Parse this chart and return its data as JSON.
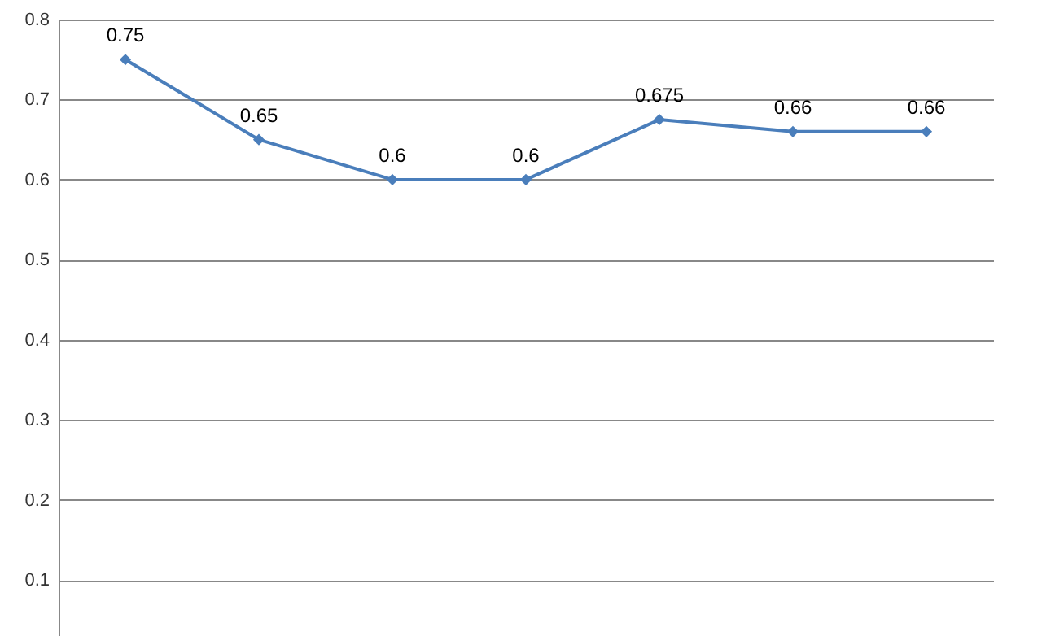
{
  "chart_data": {
    "type": "line",
    "categories": [
      null,
      null,
      null,
      null,
      null,
      null,
      null
    ],
    "series": [
      {
        "color": "#4a7ebb",
        "values": [
          0.75,
          0.65,
          0.6,
          0.6,
          0.675,
          0.66,
          0.66
        ]
      }
    ],
    "ylim": [
      0.03,
      0.8
    ],
    "yticks": [
      0.1,
      0.2,
      0.3,
      0.4,
      0.5,
      0.6,
      0.7,
      0.8
    ],
    "grid": "y",
    "marker": "diamond",
    "line_style": "solid",
    "data_labels": true,
    "tick_labels": "y"
  }
}
